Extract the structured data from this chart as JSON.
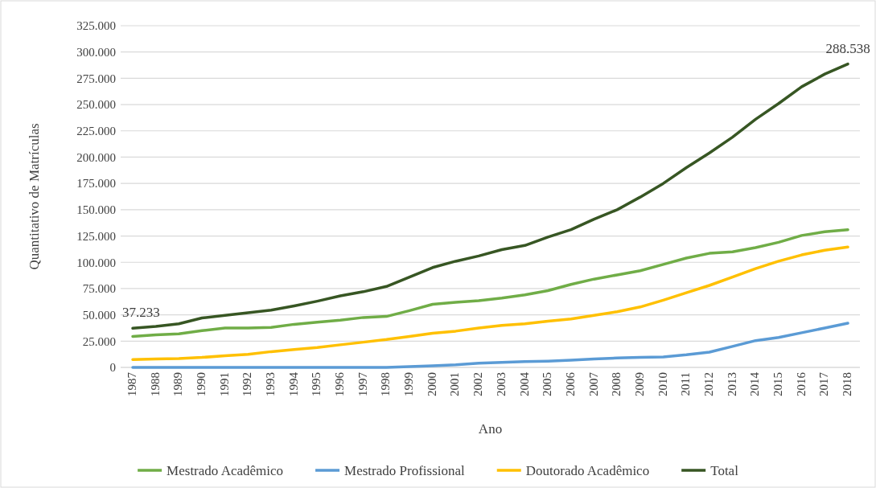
{
  "chart_data": {
    "type": "line",
    "xlabel": "Ano",
    "ylabel": "Quantitativo de Matrículas",
    "categories": [
      "1987",
      "1988",
      "1989",
      "1990",
      "1991",
      "1992",
      "1993",
      "1994",
      "1995",
      "1996",
      "1997",
      "1998",
      "1999",
      "2000",
      "2001",
      "2002",
      "2003",
      "2004",
      "2005",
      "2006",
      "2007",
      "2008",
      "2009",
      "2010",
      "2011",
      "2012",
      "2013",
      "2014",
      "2015",
      "2016",
      "2017",
      "2018"
    ],
    "series": [
      {
        "name": "Mestrado Acadêmico",
        "color": "#70ad47",
        "values": [
          29500,
          31000,
          32000,
          35000,
          37500,
          37500,
          38000,
          41000,
          43000,
          45000,
          47500,
          48500,
          54000,
          60000,
          62000,
          63500,
          66000,
          69000,
          73000,
          79000,
          84000,
          88000,
          92000,
          98000,
          104000,
          108500,
          110000,
          114000,
          119000,
          125500,
          129000,
          131000
        ]
      },
      {
        "name": "Mestrado Profissional",
        "color": "#5b9bd5",
        "values": [
          0,
          0,
          0,
          0,
          0,
          0,
          0,
          0,
          0,
          0,
          0,
          0,
          800,
          1500,
          2500,
          4000,
          4800,
          5500,
          6000,
          6800,
          8000,
          9000,
          9500,
          10000,
          12000,
          14500,
          20000,
          25500,
          28500,
          33000,
          37500,
          42000
        ]
      },
      {
        "name": "Doutorado Acadêmico",
        "color": "#ffc000",
        "values": [
          7500,
          8000,
          8500,
          9500,
          11000,
          12500,
          15000,
          17000,
          19000,
          21500,
          24000,
          26500,
          29500,
          32500,
          34500,
          37500,
          40000,
          41500,
          44000,
          46000,
          49500,
          53000,
          57500,
          64000,
          71000,
          78000,
          86000,
          94000,
          101000,
          107000,
          111500,
          114500
        ]
      },
      {
        "name": "Total",
        "color": "#375623",
        "values": [
          37233,
          39000,
          41500,
          47000,
          49500,
          52000,
          54500,
          58500,
          63000,
          68000,
          72000,
          77000,
          86000,
          95000,
          101000,
          106000,
          112000,
          116000,
          124000,
          131000,
          141000,
          150000,
          162000,
          175000,
          190000,
          204000,
          219000,
          236000,
          251000,
          267000,
          279000,
          288538
        ]
      }
    ],
    "ylim": [
      0,
      325000
    ],
    "yticks": [
      0,
      {
        "value": 25000,
        "label": "25.000"
      },
      {
        "value": 50000,
        "label": "50.000"
      },
      {
        "value": 75000,
        "label": "75.000"
      },
      {
        "value": 100000,
        "label": "100.000"
      },
      {
        "value": 125000,
        "label": "125.000"
      },
      {
        "value": 150000,
        "label": "150.000"
      },
      {
        "value": 175000,
        "label": "175.000"
      },
      {
        "value": 200000,
        "label": "200.000"
      },
      {
        "value": 225000,
        "label": "225.000"
      },
      {
        "value": 250000,
        "label": "250.000"
      },
      {
        "value": 275000,
        "label": "275.000"
      },
      {
        "value": 300000,
        "label": "300.000"
      },
      {
        "value": 325000,
        "label": "325.000"
      }
    ],
    "annotations": [
      {
        "text": "37.233",
        "x": "1987",
        "y": 37233
      },
      {
        "text": "288.538",
        "x": "2018",
        "y": 288538
      }
    ],
    "grid": "y",
    "legend": "bottom",
    "marker": "none",
    "line_style": "solid"
  }
}
